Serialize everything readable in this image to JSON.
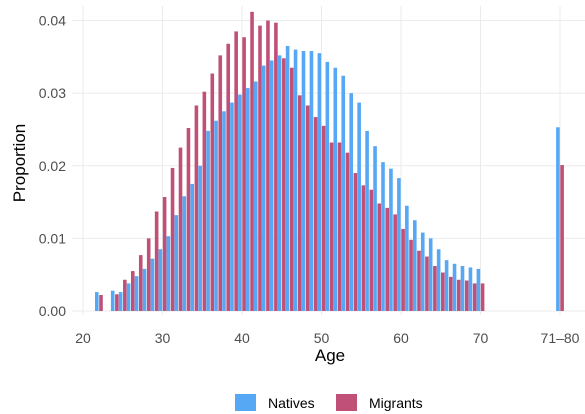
{
  "chart_data": {
    "type": "bar",
    "xlabel": "Age",
    "ylabel": "Proportion",
    "ylim": [
      0,
      0.042
    ],
    "y_ticks": [
      "0.00",
      "0.01",
      "0.02",
      "0.03",
      "0.04"
    ],
    "y_tick_values": [
      0,
      0.01,
      0.02,
      0.03,
      0.04
    ],
    "x_ticks": [
      "20",
      "30",
      "40",
      "50",
      "60",
      "70",
      "71–80"
    ],
    "x_tick_values": [
      20,
      30,
      40,
      50,
      60,
      70,
      80
    ],
    "grid": true,
    "legend_position": "bottom",
    "categories": [
      22,
      24,
      25,
      26,
      27,
      28,
      29,
      30,
      31,
      32,
      33,
      34,
      35,
      36,
      37,
      38,
      39,
      40,
      41,
      42,
      43,
      44,
      45,
      46,
      47,
      48,
      49,
      50,
      51,
      52,
      53,
      54,
      55,
      56,
      57,
      58,
      59,
      60,
      61,
      62,
      63,
      64,
      65,
      66,
      67,
      68,
      69,
      70,
      "71–80"
    ],
    "series": [
      {
        "name": "Natives",
        "color": "#56a8f5",
        "values": [
          0.0026,
          0.0028,
          0.0026,
          0.0038,
          0.0048,
          0.0058,
          0.0072,
          0.0085,
          0.0103,
          0.0132,
          0.0158,
          0.0175,
          0.02,
          0.0248,
          0.0262,
          0.0275,
          0.0287,
          0.0298,
          0.0307,
          0.0316,
          0.0338,
          0.0345,
          0.0352,
          0.0365,
          0.036,
          0.0358,
          0.0358,
          0.0355,
          0.0343,
          0.0335,
          0.0324,
          0.03,
          0.0287,
          0.0248,
          0.0227,
          0.0205,
          0.0196,
          0.0183,
          0.0145,
          0.0125,
          0.0108,
          0.01,
          0.0085,
          0.007,
          0.0065,
          0.0062,
          0.006,
          0.0058,
          0.0253
        ]
      },
      {
        "name": "Migrants",
        "color": "#c05077",
        "values": [
          0.0022,
          0.0023,
          0.0043,
          0.0055,
          0.0077,
          0.01,
          0.0137,
          0.0157,
          0.0197,
          0.0225,
          0.0252,
          0.0283,
          0.0302,
          0.0327,
          0.0352,
          0.0368,
          0.0385,
          0.0377,
          0.0412,
          0.0393,
          0.04,
          0.0397,
          0.0348,
          0.0335,
          0.0297,
          0.0283,
          0.0267,
          0.0255,
          0.0232,
          0.0232,
          0.0218,
          0.019,
          0.0173,
          0.0167,
          0.0148,
          0.0142,
          0.0133,
          0.0113,
          0.0098,
          0.0083,
          0.0075,
          0.0062,
          0.0053,
          0.0047,
          0.0043,
          0.0042,
          0.0038,
          0.0038,
          0.0201
        ]
      }
    ]
  }
}
